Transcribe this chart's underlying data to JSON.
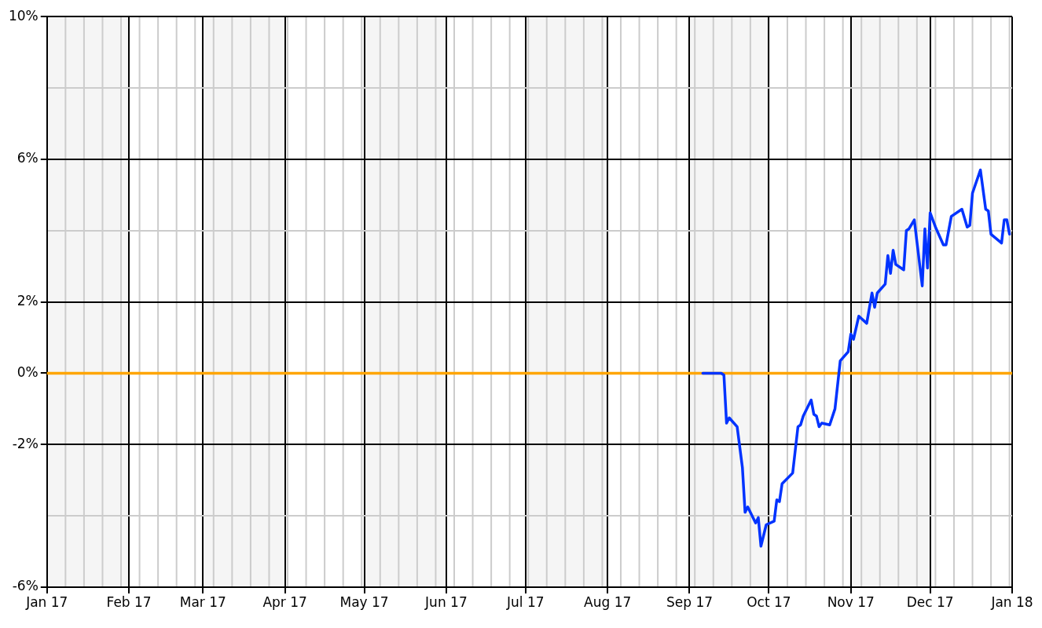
{
  "chart_data": {
    "type": "line",
    "x": [
      "2017-09-06",
      "2017-09-13",
      "2017-09-14",
      "2017-09-15",
      "2017-09-16",
      "2017-09-19",
      "2017-09-21",
      "2017-09-22",
      "2017-09-23",
      "2017-09-26",
      "2017-09-27",
      "2017-09-28",
      "2017-09-30",
      "2017-10-03",
      "2017-10-04",
      "2017-10-05",
      "2017-10-06",
      "2017-10-10",
      "2017-10-12",
      "2017-10-13",
      "2017-10-14",
      "2017-10-17",
      "2017-10-18",
      "2017-10-19",
      "2017-10-20",
      "2017-10-21",
      "2017-10-24",
      "2017-10-26",
      "2017-10-28",
      "2017-10-31",
      "2017-11-01",
      "2017-11-02",
      "2017-11-04",
      "2017-11-07",
      "2017-11-09",
      "2017-11-10",
      "2017-11-11",
      "2017-11-14",
      "2017-11-15",
      "2017-11-16",
      "2017-11-17",
      "2017-11-18",
      "2017-11-21",
      "2017-11-22",
      "2017-11-23",
      "2017-11-25",
      "2017-11-28",
      "2017-11-29",
      "2017-11-30",
      "2017-12-01",
      "2017-12-03",
      "2017-12-06",
      "2017-12-07",
      "2017-12-09",
      "2017-12-13",
      "2017-12-15",
      "2017-12-16",
      "2017-12-17",
      "2017-12-20",
      "2017-12-22",
      "2017-12-23",
      "2017-12-24",
      "2017-12-28",
      "2017-12-29",
      "2017-12-30",
      "2017-12-31"
    ],
    "series": [
      {
        "color": "#0033ff",
        "values": [
          0,
          0,
          -0.05,
          -1.4,
          -1.25,
          -1.5,
          -2.65,
          -3.9,
          -3.75,
          -4.2,
          -4.05,
          -4.85,
          -4.25,
          -4.15,
          -3.55,
          -3.6,
          -3.1,
          -2.8,
          -1.5,
          -1.45,
          -1.2,
          -0.75,
          -1.15,
          -1.2,
          -1.5,
          -1.4,
          -1.45,
          -1.0,
          0.35,
          0.6,
          1.1,
          0.95,
          1.6,
          1.4,
          2.25,
          1.85,
          2.25,
          2.5,
          3.3,
          2.8,
          3.45,
          3.05,
          2.9,
          4.0,
          4.05,
          4.3,
          2.45,
          4.05,
          2.95,
          4.5,
          4.1,
          3.6,
          3.6,
          4.4,
          4.6,
          4.1,
          4.15,
          5.05,
          5.7,
          4.6,
          4.55,
          3.9,
          3.65,
          4.3,
          4.3,
          3.9
        ]
      }
    ],
    "xlim": [
      "2017-01-01",
      "2018-01-01"
    ],
    "xticks": [
      {
        "value": "2017-01",
        "label": "Jan 17"
      },
      {
        "value": "2017-02",
        "label": "Feb 17"
      },
      {
        "value": "2017-03",
        "label": "Mar 17"
      },
      {
        "value": "2017-04",
        "label": "Apr 17"
      },
      {
        "value": "2017-05",
        "label": "May 17"
      },
      {
        "value": "2017-06",
        "label": "Jun 17"
      },
      {
        "value": "2017-07",
        "label": "Jul 17"
      },
      {
        "value": "2017-08",
        "label": "Aug 17"
      },
      {
        "value": "2017-09",
        "label": "Sep 17"
      },
      {
        "value": "2017-10",
        "label": "Oct 17"
      },
      {
        "value": "2017-11",
        "label": "Nov 17"
      },
      {
        "value": "2017-12",
        "label": "Dec 17"
      },
      {
        "value": "2018-01",
        "label": "Jan 18"
      }
    ],
    "ylim": [
      -6,
      10
    ],
    "yticks": [
      {
        "value": -6,
        "label": "-6%"
      },
      {
        "value": -4,
        "label": null
      },
      {
        "value": -2,
        "label": "-2%"
      },
      {
        "value": 0,
        "label": "0%"
      },
      {
        "value": 2,
        "label": "2%"
      },
      {
        "value": 4,
        "label": null
      },
      {
        "value": 6,
        "label": "6%"
      },
      {
        "value": 8,
        "label": null
      },
      {
        "value": 10,
        "label": "10%"
      }
    ],
    "grid": true,
    "marker": "none",
    "line_style": "solid",
    "ref_lines": [
      {
        "axis": "y",
        "value": 0,
        "color": "#ffa500"
      }
    ],
    "bands": [
      {
        "axis": "x",
        "from": "2017-01",
        "to": "2017-02",
        "color": "#f5f5f5"
      },
      {
        "axis": "x",
        "from": "2017-03",
        "to": "2017-04",
        "color": "#f5f5f5"
      },
      {
        "axis": "x",
        "from": "2017-05",
        "to": "2017-06",
        "color": "#f5f5f5"
      },
      {
        "axis": "x",
        "from": "2017-07",
        "to": "2017-08",
        "color": "#f5f5f5"
      },
      {
        "axis": "x",
        "from": "2017-09",
        "to": "2017-10",
        "color": "#f5f5f5"
      },
      {
        "axis": "x",
        "from": "2017-11",
        "to": "2017-12",
        "color": "#f5f5f5"
      }
    ]
  }
}
